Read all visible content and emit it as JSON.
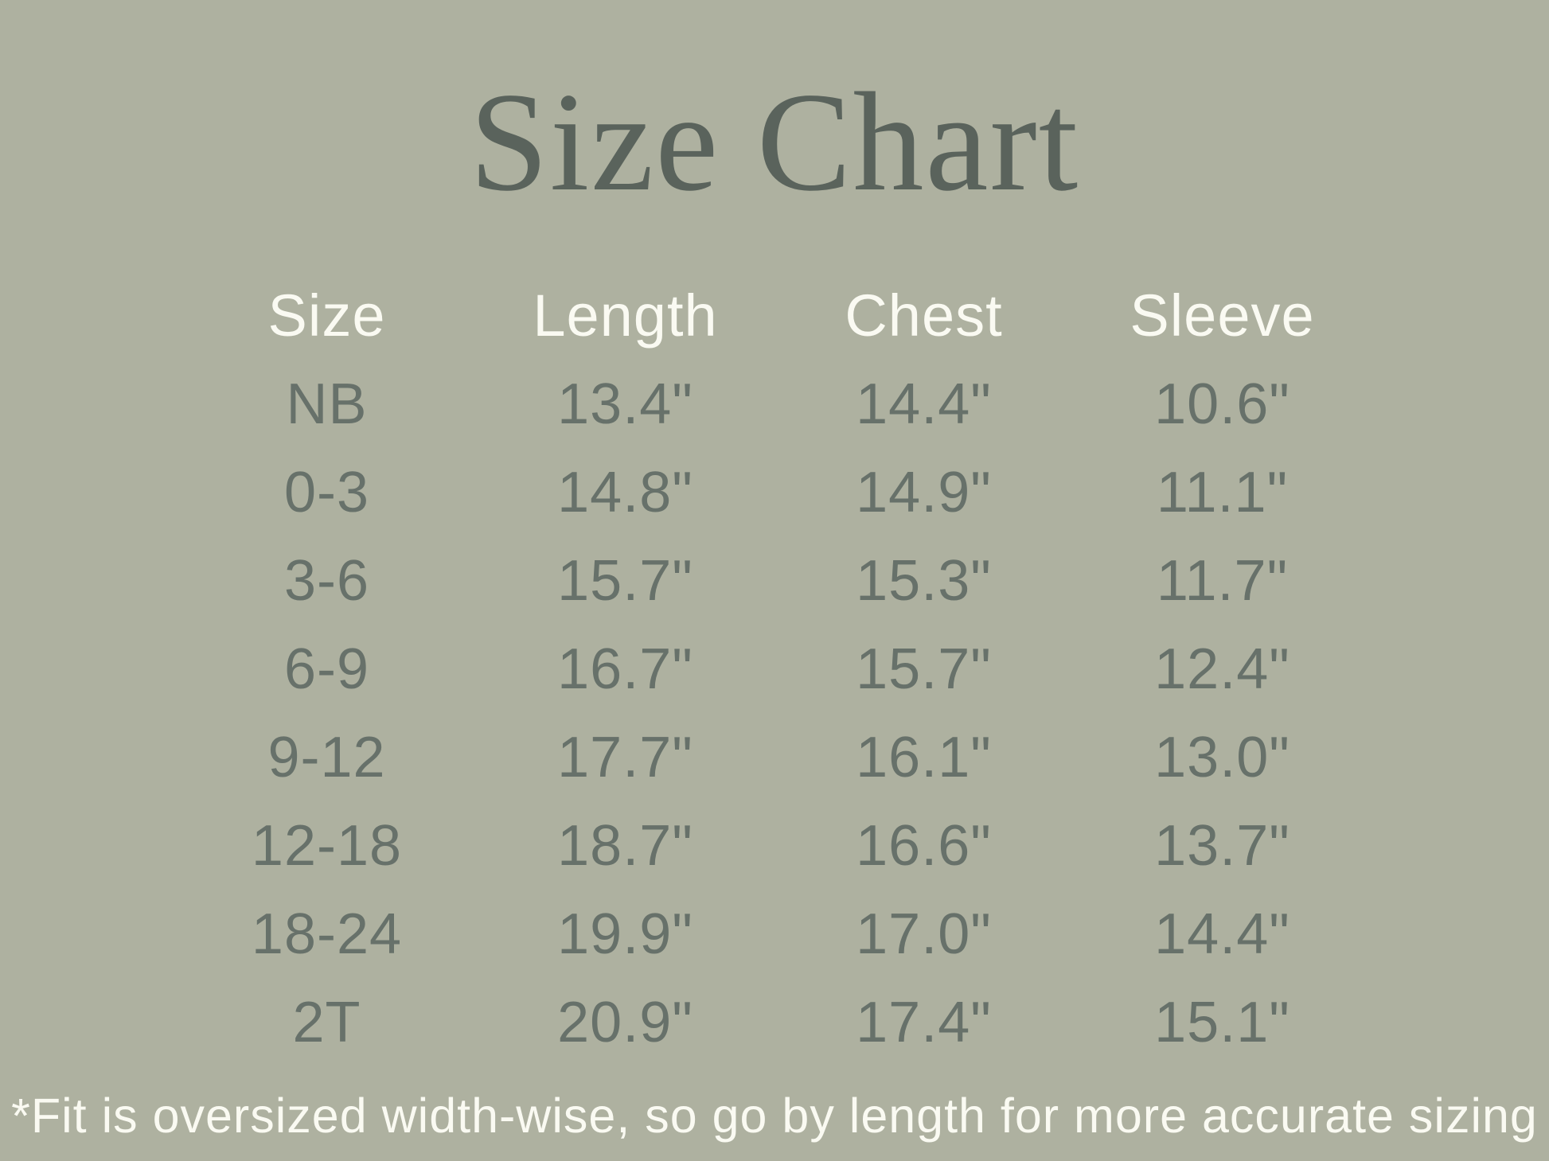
{
  "title": "Size Chart",
  "footnote": "*Fit is oversized width-wise, so go by length for more accurate sizing",
  "colors": {
    "background": "#aeb1a0",
    "title_text": "#5a635c",
    "data_text": "#67716a",
    "light_text": "#fafaf2"
  },
  "chart_data": {
    "type": "table",
    "title": "Size Chart",
    "columns": [
      "Size",
      "Length",
      "Chest",
      "Sleeve"
    ],
    "rows": [
      [
        "NB",
        "13.4\"",
        "14.4\"",
        "10.6\""
      ],
      [
        "0-3",
        "14.8\"",
        "14.9\"",
        "11.1\""
      ],
      [
        "3-6",
        "15.7\"",
        "15.3\"",
        "11.7\""
      ],
      [
        "6-9",
        "16.7\"",
        "15.7\"",
        "12.4\""
      ],
      [
        "9-12",
        "17.7\"",
        "16.1\"",
        "13.0\""
      ],
      [
        "12-18",
        "18.7\"",
        "16.6\"",
        "13.7\""
      ],
      [
        "18-24",
        "19.9\"",
        "17.0\"",
        "14.4\""
      ],
      [
        "2T",
        "20.9\"",
        "17.4\"",
        "15.1\""
      ]
    ],
    "footnote": "*Fit is oversized width-wise, so go by length for more accurate sizing",
    "layout": "4 centered columns, header row white, data rows gray-green, grid off"
  }
}
